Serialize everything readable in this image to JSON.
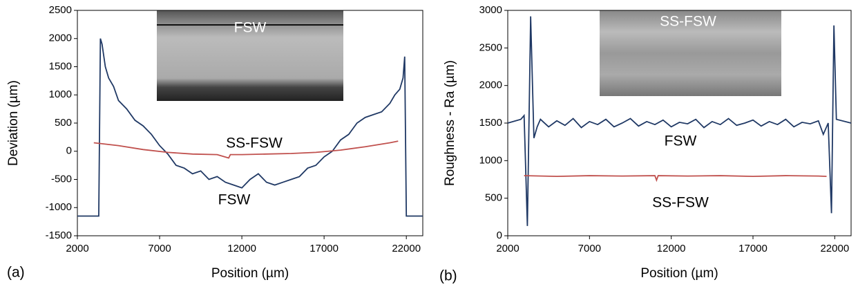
{
  "chart_data": [
    {
      "type": "line",
      "panel_label": "(a)",
      "inset_label": "FSW",
      "x_label": "Position (µm)",
      "y_label": "Deviation (µm)",
      "xlim": [
        2000,
        23000
      ],
      "xticks": [
        2000,
        7000,
        12000,
        17000,
        22000
      ],
      "ylim": [
        -1500,
        2500
      ],
      "yticks": [
        -1500,
        -1000,
        -500,
        0,
        500,
        1000,
        1500,
        2000,
        2500
      ],
      "series": [
        {
          "name": "FSW",
          "color": "#1f3864",
          "x": [
            2000,
            3300,
            3400,
            3500,
            3700,
            3900,
            4200,
            4500,
            5000,
            5500,
            6000,
            6500,
            7000,
            7500,
            8000,
            8500,
            9000,
            9500,
            10000,
            10500,
            11000,
            11500,
            12000,
            12500,
            13000,
            13500,
            14000,
            14500,
            15000,
            15500,
            16000,
            16500,
            17000,
            17500,
            18000,
            18500,
            19000,
            19500,
            20000,
            20500,
            21000,
            21300,
            21600,
            21800,
            21900,
            22000,
            23000
          ],
          "values": [
            -1150,
            -1150,
            2000,
            1900,
            1500,
            1300,
            1150,
            900,
            750,
            550,
            450,
            300,
            100,
            -50,
            -250,
            -300,
            -400,
            -350,
            -500,
            -450,
            -550,
            -600,
            -650,
            -500,
            -400,
            -550,
            -600,
            -550,
            -500,
            -450,
            -300,
            -250,
            -100,
            0,
            200,
            300,
            500,
            600,
            650,
            700,
            850,
            1000,
            1100,
            1300,
            1680,
            -1150,
            -1150
          ]
        },
        {
          "name": "SS-FSW",
          "color": "#c0504d",
          "x": [
            3000,
            4500,
            6000,
            7500,
            9000,
            10500,
            11200,
            11300,
            12000,
            13500,
            15000,
            16500,
            18000,
            19500,
            21000,
            21500
          ],
          "values": [
            150,
            100,
            30,
            -20,
            -50,
            -60,
            -120,
            -60,
            -60,
            -50,
            -40,
            -20,
            20,
            80,
            150,
            180
          ]
        }
      ]
    },
    {
      "type": "line",
      "panel_label": "(b)",
      "inset_label": "SS-FSW",
      "x_label": "Position (µm)",
      "y_label": "Roughness - Ra (µm)",
      "xlim": [
        2000,
        23000
      ],
      "xticks": [
        2000,
        7000,
        12000,
        17000,
        22000
      ],
      "ylim": [
        0,
        3000
      ],
      "yticks": [
        0,
        500,
        1000,
        1500,
        2000,
        2500,
        3000
      ],
      "series": [
        {
          "name": "FSW",
          "color": "#1f3864",
          "x": [
            2000,
            2800,
            3000,
            3200,
            3400,
            3600,
            3800,
            4000,
            4500,
            5000,
            5500,
            6000,
            6500,
            7000,
            7500,
            8000,
            8500,
            9000,
            9500,
            10000,
            10500,
            11000,
            11500,
            12000,
            12500,
            13000,
            13500,
            14000,
            14500,
            15000,
            15500,
            16000,
            16500,
            17000,
            17500,
            18000,
            18500,
            19000,
            19500,
            20000,
            20500,
            21000,
            21300,
            21600,
            21800,
            21950,
            22100,
            23000
          ],
          "values": [
            1500,
            1550,
            1600,
            130,
            2920,
            1300,
            1450,
            1550,
            1450,
            1530,
            1470,
            1560,
            1440,
            1520,
            1480,
            1550,
            1450,
            1500,
            1560,
            1460,
            1520,
            1480,
            1540,
            1450,
            1510,
            1490,
            1550,
            1440,
            1520,
            1480,
            1560,
            1470,
            1500,
            1540,
            1460,
            1520,
            1480,
            1550,
            1450,
            1510,
            1490,
            1530,
            1350,
            1500,
            300,
            2800,
            1550,
            1500
          ]
        },
        {
          "name": "SS-FSW",
          "color": "#c0504d",
          "x": [
            3000,
            5000,
            7000,
            9000,
            11000,
            11100,
            11200,
            13000,
            15000,
            17000,
            19000,
            21000,
            21500
          ],
          "values": [
            800,
            790,
            800,
            795,
            800,
            740,
            800,
            795,
            800,
            790,
            800,
            795,
            790
          ]
        }
      ]
    }
  ]
}
